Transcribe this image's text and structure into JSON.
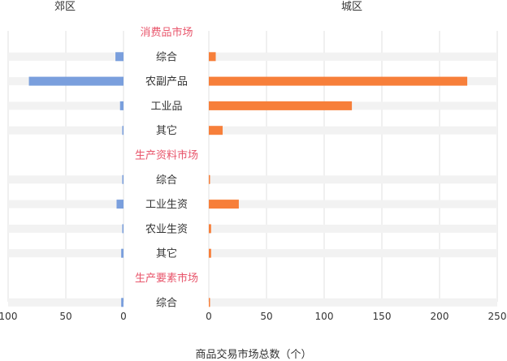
{
  "chart_data": {
    "type": "bar",
    "orientation": "horizontal-butterfly",
    "xlabel": "商品交易市场总数（个）",
    "colors": {
      "left": "#7a9fdd",
      "right": "#f77f3a",
      "section": "#e8556b",
      "band": "#f2f2f2",
      "grid": "#e0e0e0"
    },
    "left_panel": {
      "title": "郊区",
      "xlim": [
        0,
        100
      ],
      "ticks": [
        100,
        50,
        0
      ]
    },
    "right_panel": {
      "title": "城区",
      "xlim": [
        0,
        250
      ],
      "ticks": [
        0,
        50,
        100,
        150,
        200,
        250
      ]
    },
    "series": [
      {
        "name": "郊区",
        "side": "left"
      },
      {
        "name": "城区",
        "side": "right"
      }
    ],
    "rows": [
      {
        "kind": "section",
        "label": "消费品市场"
      },
      {
        "kind": "bar",
        "label": "综合",
        "left": 7,
        "right": 6
      },
      {
        "kind": "bar",
        "label": "农副产品",
        "left": 82,
        "right": 224
      },
      {
        "kind": "bar",
        "label": "工业品",
        "left": 3,
        "right": 124
      },
      {
        "kind": "bar",
        "label": "其它",
        "left": 1,
        "right": 12
      },
      {
        "kind": "section",
        "label": "生产资料市场"
      },
      {
        "kind": "bar",
        "label": "综合",
        "left": 1,
        "right": 1
      },
      {
        "kind": "bar",
        "label": "工业生资",
        "left": 6,
        "right": 26
      },
      {
        "kind": "bar",
        "label": "农业生资",
        "left": 1,
        "right": 2
      },
      {
        "kind": "bar",
        "label": "其它",
        "left": 2,
        "right": 2
      },
      {
        "kind": "section",
        "label": "生产要素市场"
      },
      {
        "kind": "bar",
        "label": "综合",
        "left": 2,
        "right": 1
      }
    ]
  }
}
